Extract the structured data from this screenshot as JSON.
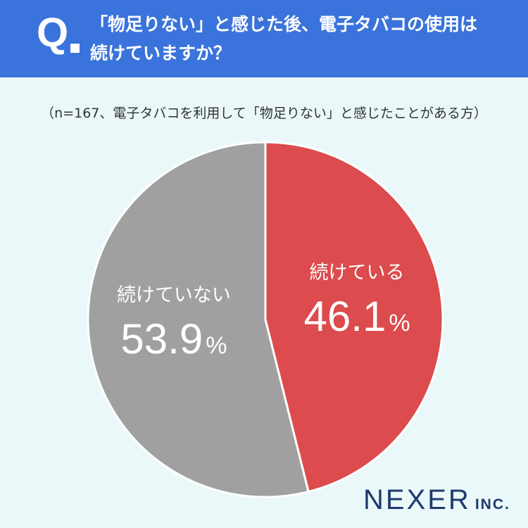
{
  "header": {
    "q_label": "Q",
    "question_line1": "「物足りない」と感じた後、電子タバコの使用は",
    "question_line2": "続けていますか？"
  },
  "note": "（n=167、電子タバコを利用して「物足りない」と感じたことがある方）",
  "chart_data": {
    "type": "pie",
    "categories": [
      "続けている",
      "続けていない"
    ],
    "values": [
      46.1,
      53.9
    ],
    "unit": "%",
    "colors": [
      "#dc4b4d",
      "#a0a0a0"
    ],
    "start": "12 o'clock, clockwise"
  },
  "brand": {
    "name": "NEXER",
    "suffix": "INC."
  },
  "colors": {
    "header_bg": "#3a73db",
    "background": "#eaf8f9",
    "brand": "#1f3a6e"
  }
}
